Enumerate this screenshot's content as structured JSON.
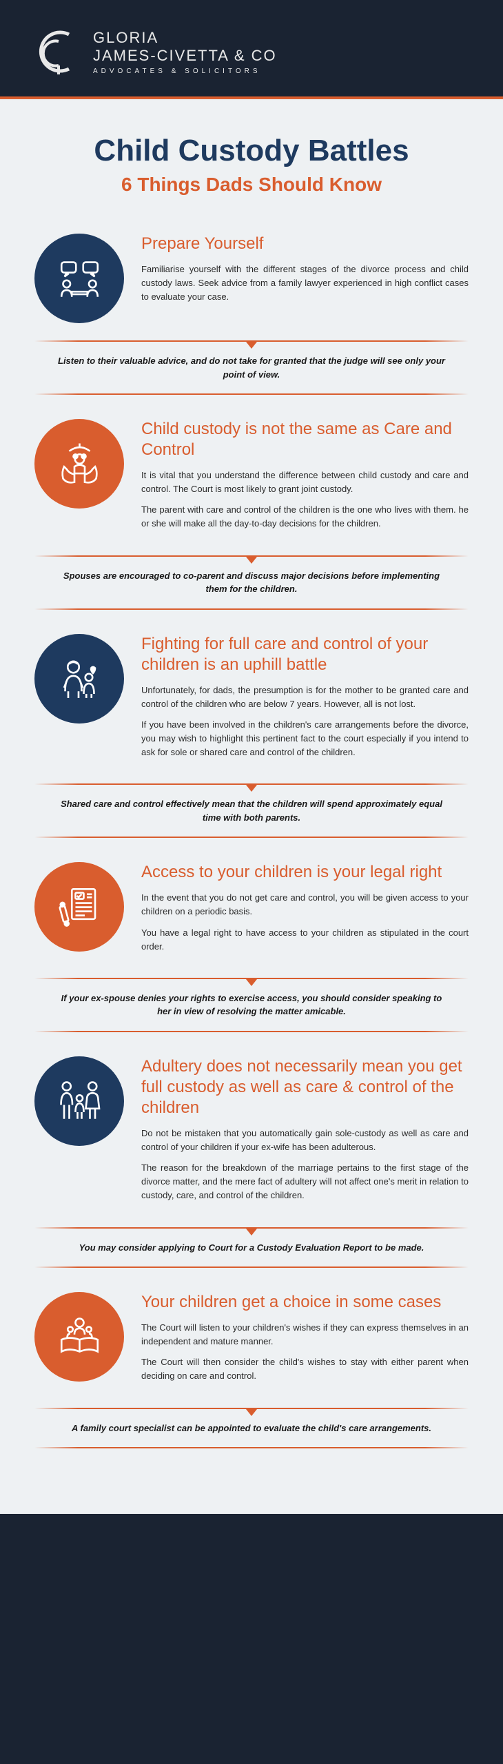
{
  "header": {
    "company_line1": "GLORIA",
    "company_line2": "JAMES-CIVETTA & CO",
    "company_line3": "ADVOCATES & SOLICITORS"
  },
  "title": "Child Custody Battles",
  "subtitle": "6 Things Dads Should Know",
  "colors": {
    "navy": "#1e3a5f",
    "orange": "#d95d2e",
    "bg_dark": "#1a2332",
    "bg_light": "#eef1f3",
    "text": "#2a2a2a"
  },
  "sections": [
    {
      "icon_color": "navy",
      "icon_name": "meeting-icon",
      "title": "Prepare Yourself",
      "paragraphs": [
        "Familiarise yourself with the different stages of the divorce process and child custody laws. Seek advice from a family lawyer experienced in high conflict cases to evaluate your case."
      ],
      "callout": "Listen to their valuable advice, and do not take for granted that the judge will see only your point of view."
    },
    {
      "icon_color": "orange",
      "icon_name": "hands-child-icon",
      "title": "Child custody is not the same as Care and Control",
      "paragraphs": [
        "It is vital that you understand the difference between child custody and care and control. The Court is most likely to grant joint custody.",
        "The parent with care and control of the children is the one who lives with them. he or she will make all the day-to-day decisions for the children."
      ],
      "callout": "Spouses are encouraged to co-parent and discuss major decisions before implementing them for the children."
    },
    {
      "icon_color": "navy",
      "icon_name": "parent-child-icon",
      "title": "Fighting for full care and control of your children is an uphill battle",
      "paragraphs": [
        "Unfortunately, for dads, the presumption is for the mother to be granted care and control of the children who are below 7 years. However, all is not lost.",
        "If you have been involved in the children's care arrangements before the divorce, you may wish to highlight this pertinent fact to the court especially if you intend to ask for sole or shared care and control of the children."
      ],
      "callout": "Shared care and control effectively mean that the children will spend approximately equal time with both parents."
    },
    {
      "icon_color": "orange",
      "icon_name": "legal-document-icon",
      "title": "Access to your children is your legal right",
      "paragraphs": [
        "In the event that you do not get care and control, you will be given access to your children on a periodic basis.",
        "You have a legal right to have access to your children as stipulated in the court order."
      ],
      "callout": "If your ex-spouse denies your rights to exercise access, you should consider speaking to her in view of resolving the matter amicable."
    },
    {
      "icon_color": "navy",
      "icon_name": "family-icon",
      "title": "Adultery does not necessarily mean you get full custody as well as care & control of the children",
      "paragraphs": [
        "Do not be mistaken that you automatically gain sole-custody as well as care and control of your children if your ex-wife has been adulterous.",
        "The reason for the breakdown of the marriage pertains to the first stage of the divorce matter, and the mere fact of adultery will not affect one's merit in relation to custody, care, and control of the children."
      ],
      "callout": "You may consider applying to Court for a Custody Evaluation Report to be made."
    },
    {
      "icon_color": "orange",
      "icon_name": "family-book-icon",
      "title": "Your children get a choice in some cases",
      "paragraphs": [
        "The Court will listen to your children's wishes if they can express themselves in an independent and mature manner.",
        "The Court will then consider the child's wishes to stay with either parent when deciding on care and control."
      ],
      "callout": "A family court specialist can be appointed to evaluate the child's care arrangements."
    }
  ]
}
